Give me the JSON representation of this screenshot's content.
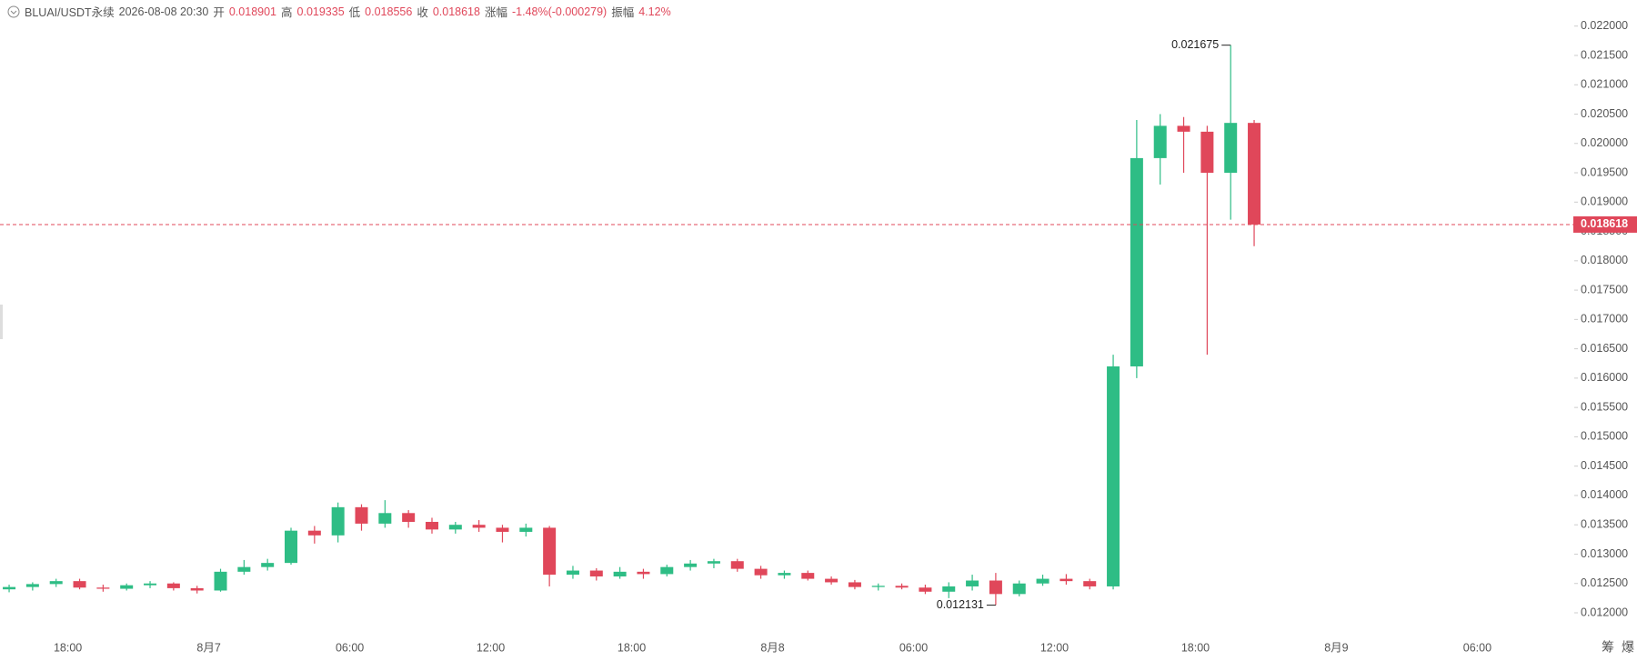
{
  "header": {
    "symbol": "BLUAI/USDT永续",
    "time": "2026-08-08 20:30",
    "open_label": "开",
    "open": "0.018901",
    "high_label": "高",
    "high": "0.019335",
    "low_label": "低",
    "low": "0.018556",
    "close_label": "收",
    "close": "0.018618",
    "change_label": "涨幅",
    "change": "-1.48%(-0.000279)",
    "amplitude_label": "振幅",
    "amplitude": "4.12%"
  },
  "side_tools": [
    "筹",
    "爆"
  ],
  "chart_data": {
    "type": "candlestick",
    "up_color": "#2ebd85",
    "down_color": "#e0475a",
    "xtick_labels": [
      "18:00",
      "8月7",
      "06:00",
      "12:00",
      "18:00",
      "8月8",
      "06:00",
      "12:00",
      "18:00",
      "8月9",
      "06:00"
    ],
    "ylim": [
      0.0115,
      0.0222
    ],
    "yticks": [
      {
        "value": 0.012,
        "label": "0.012000"
      },
      {
        "value": 0.0125,
        "label": "0.012500"
      },
      {
        "value": 0.013,
        "label": "0.013000"
      },
      {
        "value": 0.0135,
        "label": "0.013500"
      },
      {
        "value": 0.014,
        "label": "0.014000"
      },
      {
        "value": 0.0145,
        "label": "0.014500"
      },
      {
        "value": 0.015,
        "label": "0.015000"
      },
      {
        "value": 0.0155,
        "label": "0.015500"
      },
      {
        "value": 0.016,
        "label": "0.016000"
      },
      {
        "value": 0.0165,
        "label": "0.016500"
      },
      {
        "value": 0.017,
        "label": "0.017000"
      },
      {
        "value": 0.0175,
        "label": "0.017500"
      },
      {
        "value": 0.018,
        "label": "0.018000"
      },
      {
        "value": 0.0185,
        "label": "0.018500"
      },
      {
        "value": 0.019,
        "label": "0.019000"
      },
      {
        "value": 0.0195,
        "label": "0.019500"
      },
      {
        "value": 0.02,
        "label": "0.020000"
      },
      {
        "value": 0.0205,
        "label": "0.020500"
      },
      {
        "value": 0.021,
        "label": "0.021000"
      },
      {
        "value": 0.0215,
        "label": "0.021500"
      },
      {
        "value": 0.022,
        "label": "0.022000"
      }
    ],
    "candles": [
      {
        "o": 0.0124,
        "h": 0.01248,
        "l": 0.01235,
        "c": 0.01244
      },
      {
        "o": 0.01244,
        "h": 0.01252,
        "l": 0.01238,
        "c": 0.01249
      },
      {
        "o": 0.01249,
        "h": 0.01258,
        "l": 0.01244,
        "c": 0.01254
      },
      {
        "o": 0.01254,
        "h": 0.01258,
        "l": 0.0124,
        "c": 0.01243
      },
      {
        "o": 0.01243,
        "h": 0.01248,
        "l": 0.01236,
        "c": 0.01241
      },
      {
        "o": 0.01241,
        "h": 0.0125,
        "l": 0.01238,
        "c": 0.01247
      },
      {
        "o": 0.01247,
        "h": 0.01254,
        "l": 0.01242,
        "c": 0.0125
      },
      {
        "o": 0.0125,
        "h": 0.01252,
        "l": 0.01238,
        "c": 0.01242
      },
      {
        "o": 0.01242,
        "h": 0.01246,
        "l": 0.01233,
        "c": 0.01238
      },
      {
        "o": 0.01238,
        "h": 0.01275,
        "l": 0.01236,
        "c": 0.0127
      },
      {
        "o": 0.0127,
        "h": 0.0129,
        "l": 0.01265,
        "c": 0.01278
      },
      {
        "o": 0.01278,
        "h": 0.01292,
        "l": 0.01272,
        "c": 0.01285
      },
      {
        "o": 0.01285,
        "h": 0.01345,
        "l": 0.01282,
        "c": 0.0134
      },
      {
        "o": 0.0134,
        "h": 0.01348,
        "l": 0.01318,
        "c": 0.01332
      },
      {
        "o": 0.01332,
        "h": 0.01388,
        "l": 0.0132,
        "c": 0.0138
      },
      {
        "o": 0.0138,
        "h": 0.01385,
        "l": 0.0134,
        "c": 0.01352
      },
      {
        "o": 0.01352,
        "h": 0.01392,
        "l": 0.01345,
        "c": 0.0137
      },
      {
        "o": 0.0137,
        "h": 0.01375,
        "l": 0.01345,
        "c": 0.01355
      },
      {
        "o": 0.01355,
        "h": 0.01362,
        "l": 0.01335,
        "c": 0.01342
      },
      {
        "o": 0.01342,
        "h": 0.01355,
        "l": 0.01335,
        "c": 0.0135
      },
      {
        "o": 0.0135,
        "h": 0.01358,
        "l": 0.01338,
        "c": 0.01345
      },
      {
        "o": 0.01345,
        "h": 0.0135,
        "l": 0.0132,
        "c": 0.01338
      },
      {
        "o": 0.01338,
        "h": 0.01352,
        "l": 0.0133,
        "c": 0.01345
      },
      {
        "o": 0.01345,
        "h": 0.01348,
        "l": 0.01245,
        "c": 0.01265
      },
      {
        "o": 0.01265,
        "h": 0.0128,
        "l": 0.01258,
        "c": 0.01272
      },
      {
        "o": 0.01272,
        "h": 0.01276,
        "l": 0.01255,
        "c": 0.01262
      },
      {
        "o": 0.01262,
        "h": 0.01278,
        "l": 0.01258,
        "c": 0.0127
      },
      {
        "o": 0.0127,
        "h": 0.01275,
        "l": 0.01258,
        "c": 0.01266
      },
      {
        "o": 0.01266,
        "h": 0.01282,
        "l": 0.01262,
        "c": 0.01278
      },
      {
        "o": 0.01278,
        "h": 0.0129,
        "l": 0.01272,
        "c": 0.01284
      },
      {
        "o": 0.01284,
        "h": 0.01292,
        "l": 0.01276,
        "c": 0.01288
      },
      {
        "o": 0.01288,
        "h": 0.01292,
        "l": 0.0127,
        "c": 0.01275
      },
      {
        "o": 0.01275,
        "h": 0.0128,
        "l": 0.01258,
        "c": 0.01264
      },
      {
        "o": 0.01264,
        "h": 0.01272,
        "l": 0.01258,
        "c": 0.01268
      },
      {
        "o": 0.01268,
        "h": 0.01272,
        "l": 0.01255,
        "c": 0.01258
      },
      {
        "o": 0.01258,
        "h": 0.01262,
        "l": 0.01248,
        "c": 0.01252
      },
      {
        "o": 0.01252,
        "h": 0.01256,
        "l": 0.0124,
        "c": 0.01244
      },
      {
        "o": 0.01244,
        "h": 0.0125,
        "l": 0.01238,
        "c": 0.01246
      },
      {
        "o": 0.01246,
        "h": 0.0125,
        "l": 0.0124,
        "c": 0.01243
      },
      {
        "o": 0.01243,
        "h": 0.01248,
        "l": 0.01232,
        "c": 0.01236
      },
      {
        "o": 0.01236,
        "h": 0.01252,
        "l": 0.01225,
        "c": 0.01245
      },
      {
        "o": 0.01245,
        "h": 0.01265,
        "l": 0.01238,
        "c": 0.01255
      },
      {
        "o": 0.01255,
        "h": 0.01268,
        "l": 0.012131,
        "c": 0.01232
      },
      {
        "o": 0.01232,
        "h": 0.01255,
        "l": 0.01228,
        "c": 0.0125
      },
      {
        "o": 0.0125,
        "h": 0.01265,
        "l": 0.01246,
        "c": 0.01258
      },
      {
        "o": 0.01258,
        "h": 0.01266,
        "l": 0.01248,
        "c": 0.01254
      },
      {
        "o": 0.01254,
        "h": 0.01258,
        "l": 0.0124,
        "c": 0.01245
      },
      {
        "o": 0.01245,
        "h": 0.0164,
        "l": 0.0124,
        "c": 0.0162
      },
      {
        "o": 0.0162,
        "h": 0.0204,
        "l": 0.016,
        "c": 0.01975
      },
      {
        "o": 0.01975,
        "h": 0.0205,
        "l": 0.0193,
        "c": 0.0203
      },
      {
        "o": 0.0203,
        "h": 0.02045,
        "l": 0.0195,
        "c": 0.0202
      },
      {
        "o": 0.0202,
        "h": 0.0203,
        "l": 0.0164,
        "c": 0.0195
      },
      {
        "o": 0.0195,
        "h": 0.021675,
        "l": 0.0187,
        "c": 0.02035
      },
      {
        "o": 0.02035,
        "h": 0.0204,
        "l": 0.01825,
        "c": 0.018618
      }
    ]
  }
}
